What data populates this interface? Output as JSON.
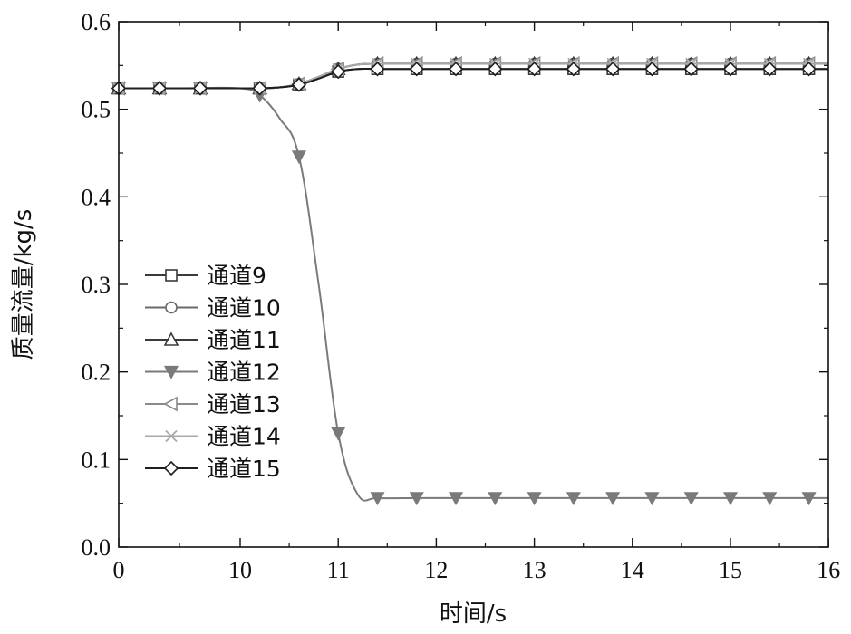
{
  "chart_data": {
    "type": "line",
    "xlabel": "时间/s",
    "ylabel": "质量流量/kg/s",
    "xlim": [
      0,
      16
    ],
    "ylim": [
      0,
      0.6
    ],
    "x_ticks": [
      "0",
      "10",
      "11",
      "12",
      "13",
      "14",
      "15",
      "16"
    ],
    "y_ticks": [
      "0.0",
      "0.1",
      "0.2",
      "0.3",
      "0.4",
      "0.5",
      "0.6"
    ],
    "x_axis_note": "broken axis: 0 to 10 compressed, 10 to 16 linear",
    "grid": false,
    "legend_position": "center-left",
    "x": [
      0,
      2,
      5,
      10,
      10.2,
      10.4,
      10.6,
      10.8,
      11,
      11.2,
      11.4,
      11.8,
      12.2,
      12.6,
      13,
      13.4,
      13.8,
      14.2,
      14.6,
      15,
      15.4,
      15.8,
      16
    ],
    "series": [
      {
        "name": "通道9",
        "marker": "square",
        "color": "#3a3a3a",
        "values": [
          0.524,
          0.524,
          0.524,
          0.524,
          0.524,
          0.525,
          0.528,
          0.535,
          0.543,
          0.546,
          0.546,
          0.546,
          0.546,
          0.546,
          0.546,
          0.546,
          0.546,
          0.546,
          0.546,
          0.546,
          0.546,
          0.546,
          0.546
        ]
      },
      {
        "name": "通道10",
        "marker": "circle",
        "color": "#6a6a6a",
        "values": [
          0.524,
          0.524,
          0.524,
          0.524,
          0.524,
          0.525,
          0.529,
          0.537,
          0.546,
          0.551,
          0.552,
          0.552,
          0.552,
          0.552,
          0.552,
          0.552,
          0.552,
          0.552,
          0.552,
          0.552,
          0.552,
          0.552,
          0.552
        ]
      },
      {
        "name": "通道11",
        "marker": "triangle-up",
        "color": "#3a3a3a",
        "values": [
          0.524,
          0.524,
          0.524,
          0.524,
          0.524,
          0.525,
          0.529,
          0.537,
          0.546,
          0.551,
          0.552,
          0.552,
          0.552,
          0.552,
          0.552,
          0.552,
          0.552,
          0.552,
          0.552,
          0.552,
          0.552,
          0.552,
          0.552
        ]
      },
      {
        "name": "通道12",
        "marker": "triangle-down-filled",
        "color": "#7a7a7a",
        "values": [
          0.524,
          0.524,
          0.524,
          0.524,
          0.516,
          0.49,
          0.446,
          0.3,
          0.13,
          0.06,
          0.056,
          0.056,
          0.056,
          0.056,
          0.056,
          0.056,
          0.056,
          0.056,
          0.056,
          0.056,
          0.056,
          0.056,
          0.056
        ]
      },
      {
        "name": "通道13",
        "marker": "triangle-left",
        "color": "#8a8a8a",
        "values": [
          0.524,
          0.524,
          0.524,
          0.524,
          0.524,
          0.525,
          0.529,
          0.537,
          0.546,
          0.551,
          0.552,
          0.552,
          0.552,
          0.552,
          0.552,
          0.552,
          0.552,
          0.552,
          0.552,
          0.552,
          0.552,
          0.552,
          0.552
        ]
      },
      {
        "name": "通道14",
        "marker": "cross-x",
        "color": "#a8a8a8",
        "values": [
          0.524,
          0.524,
          0.524,
          0.524,
          0.524,
          0.525,
          0.529,
          0.537,
          0.546,
          0.551,
          0.552,
          0.552,
          0.552,
          0.552,
          0.552,
          0.552,
          0.552,
          0.552,
          0.552,
          0.552,
          0.552,
          0.552,
          0.552
        ]
      },
      {
        "name": "通道15",
        "marker": "diamond",
        "color": "#1e1e1e",
        "values": [
          0.524,
          0.524,
          0.524,
          0.524,
          0.524,
          0.525,
          0.528,
          0.535,
          0.543,
          0.546,
          0.546,
          0.546,
          0.546,
          0.546,
          0.546,
          0.546,
          0.546,
          0.546,
          0.546,
          0.546,
          0.546,
          0.546,
          0.546
        ]
      }
    ]
  }
}
